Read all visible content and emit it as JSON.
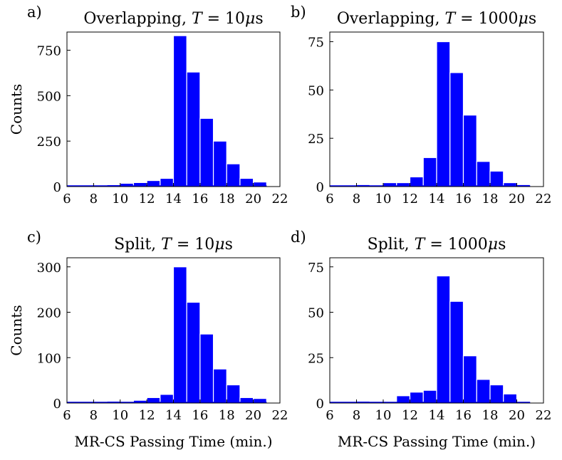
{
  "chart_data": [
    {
      "type": "bar",
      "panel_letter": "a)",
      "title": "Overlapping, T = 10μs",
      "title_parts": {
        "prefix": "Overlapping, ",
        "var": "T",
        "eq": " = 10",
        "mu": "μ",
        "unit": "s"
      },
      "ylabel": "Counts",
      "xlabel": "",
      "xlim": [
        6,
        22
      ],
      "ylim": [
        0,
        850
      ],
      "xticks": [
        6,
        8,
        10,
        12,
        14,
        16,
        18,
        20,
        22
      ],
      "yticks": [
        0,
        250,
        500,
        750
      ],
      "bin_width": 1,
      "bins": [
        6,
        7,
        8,
        9,
        10,
        11,
        12,
        13,
        14,
        15,
        16,
        17,
        18,
        19,
        20
      ],
      "values": [
        1,
        2,
        5,
        10,
        18,
        22,
        33,
        45,
        830,
        630,
        375,
        250,
        125,
        45,
        25
      ]
    },
    {
      "type": "bar",
      "panel_letter": "b)",
      "title": "Overlapping, T = 1000μs",
      "title_parts": {
        "prefix": "Overlapping, ",
        "var": "T",
        "eq": " = 1000",
        "mu": "μ",
        "unit": "s"
      },
      "ylabel": "",
      "xlabel": "",
      "xlim": [
        6,
        22
      ],
      "ylim": [
        0,
        80
      ],
      "xticks": [
        6,
        8,
        10,
        12,
        14,
        16,
        18,
        20,
        22
      ],
      "yticks": [
        0,
        25,
        50,
        75
      ],
      "bin_width": 1,
      "bins": [
        6,
        7,
        8,
        9,
        10,
        11,
        12,
        13,
        14,
        15,
        16,
        17,
        18,
        19,
        20
      ],
      "values": [
        0,
        0,
        1,
        0,
        2,
        2,
        5,
        15,
        75,
        59,
        37,
        13,
        8,
        2,
        1
      ]
    },
    {
      "type": "bar",
      "panel_letter": "c)",
      "title": "Split, T = 10μs",
      "title_parts": {
        "prefix": "Split, ",
        "var": "T",
        "eq": " = 10",
        "mu": "μ",
        "unit": "s"
      },
      "ylabel": "Counts",
      "xlabel": "MR-CS Passing Time (min.)",
      "xlim": [
        6,
        22
      ],
      "ylim": [
        0,
        320
      ],
      "xticks": [
        6,
        8,
        10,
        12,
        14,
        16,
        18,
        20,
        22
      ],
      "yticks": [
        0,
        100,
        200,
        300
      ],
      "bin_width": 1,
      "bins": [
        6,
        7,
        8,
        9,
        10,
        11,
        12,
        13,
        14,
        15,
        16,
        17,
        18,
        19,
        20
      ],
      "values": [
        0,
        1,
        2,
        4,
        3,
        6,
        12,
        19,
        300,
        222,
        152,
        75,
        40,
        12,
        10
      ]
    },
    {
      "type": "bar",
      "panel_letter": "d)",
      "title": "Split, T = 1000μs",
      "title_parts": {
        "prefix": "Split, ",
        "var": "T",
        "eq": " = 1000",
        "mu": "μ",
        "unit": "s"
      },
      "ylabel": "",
      "xlabel": "MR-CS Passing Time (min.)",
      "xlim": [
        6,
        22
      ],
      "ylim": [
        0,
        80
      ],
      "xticks": [
        6,
        8,
        10,
        12,
        14,
        16,
        18,
        20,
        22
      ],
      "yticks": [
        0,
        25,
        50,
        75
      ],
      "bin_width": 1,
      "bins": [
        6,
        7,
        8,
        9,
        10,
        11,
        12,
        13,
        14,
        15,
        16,
        17,
        18,
        19,
        20
      ],
      "values": [
        0,
        0,
        1,
        0,
        0,
        4,
        6,
        7,
        70,
        56,
        26,
        13,
        10,
        5,
        0
      ]
    }
  ],
  "colors": {
    "bar": "#0000ff",
    "bar_edge": "#ffffff",
    "axes": "#000000"
  }
}
